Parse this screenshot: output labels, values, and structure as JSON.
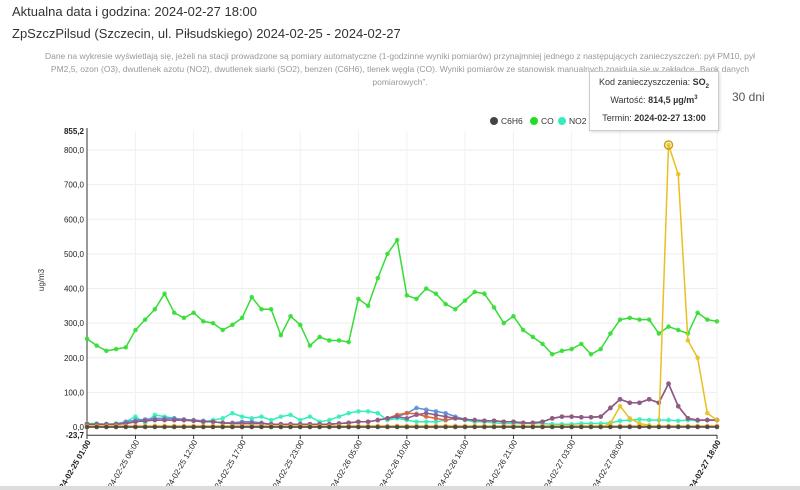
{
  "header": {
    "current_datetime": "Aktualna data i godzina: 2024-02-27 18:00",
    "station_title": "ZpSzczPilsud (Szczecin, ul. Piłsudskiego) 2024-02-25 - 2024-02-27"
  },
  "note": "Dane na wykresie wyświetlają się, jeżeli na stacji prowadzone są pomiary automatyczne (1-godzinne wyniki pomiarów) przynajmniej jednego z następujących zanieczyszczeń: pył PM10, pył PM2,5, ozon (O3), dwutlenek azotu (NO2), dwutlenek siarki (SO2), benzen (C6H6), tlenek węgla (CO). Wyniki pomiarów ze stanowisk manualnych znajdują się w zakładce „Bank danych pomiarowych”.",
  "range_button": "30 dni",
  "tooltip": {
    "code_label": "Kod zanieczyszczenia:",
    "code_value": "SO",
    "code_sub": "2",
    "value_label": "Wartość:",
    "value_value": "814,5 µg/m",
    "value_sup": "3",
    "term_label": "Termin:",
    "term_value": "2024-02-27 13:00"
  },
  "chart_data": {
    "type": "line",
    "ylabel": "ug/m3",
    "ylim": [
      -23.7,
      855.2
    ],
    "ytick_labels": [
      "855,2",
      "800,0",
      "700,0",
      "600,0",
      "500,0",
      "400,0",
      "300,0",
      "200,0",
      "100,0",
      "0,0",
      "-23,7"
    ],
    "yticks": [
      855.2,
      800,
      700,
      600,
      500,
      400,
      300,
      200,
      100,
      0,
      -23.7
    ],
    "x_start": "2024-02-25 01:00",
    "x_hours": 65,
    "xtick_labels": [
      "2024-02-25 01:00",
      "2024-02-25 06:00",
      "2024-02-25 12:00",
      "2024-02-25 17:00",
      "2024-02-25 23:00",
      "2024-02-26 05:00",
      "2024-02-26 10:00",
      "2024-02-26 16:00",
      "2024-02-26 21:00",
      "2024-02-27 03:00",
      "2024-02-27 08:00",
      "2024-02-27 18:00"
    ],
    "xtick_hours": [
      0,
      5,
      11,
      16,
      22,
      28,
      33,
      39,
      44,
      50,
      55,
      65
    ],
    "legend": {
      "placement": "top-right",
      "items": [
        {
          "name": "C6H6",
          "color": "#444444"
        },
        {
          "name": "CO",
          "color": "#22dd22"
        },
        {
          "name": "NO2",
          "color": "#33eebb"
        }
      ]
    },
    "series": [
      {
        "name": "CO",
        "color": "#33dd33",
        "values": [
          255,
          235,
          220,
          225,
          230,
          280,
          310,
          340,
          385,
          330,
          315,
          330,
          305,
          300,
          280,
          295,
          315,
          375,
          340,
          340,
          265,
          320,
          295,
          235,
          260,
          250,
          250,
          245,
          370,
          350,
          430,
          500,
          540,
          380,
          370,
          400,
          385,
          355,
          340,
          365,
          390,
          385,
          345,
          300,
          320,
          280,
          260,
          240,
          210,
          220,
          225,
          240,
          210,
          225,
          270,
          310,
          315,
          310,
          310,
          270,
          290,
          280,
          270,
          330,
          310,
          305
        ]
      },
      {
        "name": "NO2",
        "color": "#33eebb",
        "values": [
          10,
          10,
          8,
          10,
          15,
          30,
          12,
          35,
          30,
          25,
          20,
          18,
          15,
          20,
          25,
          40,
          30,
          25,
          30,
          20,
          30,
          35,
          20,
          30,
          15,
          20,
          30,
          40,
          45,
          45,
          40,
          20,
          25,
          20,
          15,
          15,
          15,
          20,
          25,
          20,
          15,
          15,
          12,
          10,
          10,
          10,
          10,
          10,
          8,
          8,
          8,
          10,
          10,
          10,
          12,
          18,
          20,
          22,
          20,
          20,
          20,
          18,
          20,
          18,
          20,
          20
        ]
      },
      {
        "name": null,
        "color": "#5b8fd8",
        "values": [
          8,
          8,
          8,
          8,
          15,
          20,
          22,
          25,
          25,
          25,
          22,
          20,
          18,
          15,
          12,
          12,
          15,
          15,
          12,
          8,
          8,
          8,
          8,
          8,
          8,
          8,
          10,
          12,
          15,
          15,
          20,
          25,
          30,
          40,
          55,
          50,
          45,
          40,
          30,
          22,
          20,
          18,
          18,
          15,
          15,
          12,
          12,
          15,
          25,
          30,
          30,
          28,
          28,
          30,
          55,
          80,
          70,
          70,
          80,
          70,
          125,
          60,
          25,
          20,
          20,
          20
        ]
      },
      {
        "name": null,
        "color": "#e0603a",
        "values": [
          8,
          8,
          8,
          8,
          10,
          15,
          18,
          20,
          20,
          20,
          20,
          18,
          15,
          15,
          12,
          10,
          10,
          10,
          10,
          8,
          8,
          8,
          8,
          8,
          8,
          8,
          10,
          12,
          15,
          15,
          20,
          25,
          35,
          40,
          38,
          30,
          25,
          20,
          25,
          22,
          20,
          18,
          18,
          15,
          15,
          12,
          12,
          15,
          25,
          30,
          30,
          28,
          28,
          30,
          55,
          80,
          70,
          70,
          80,
          70,
          125,
          60,
          25,
          20,
          20,
          20
        ]
      },
      {
        "name": null,
        "color": "#8a5a8a",
        "values": [
          8,
          8,
          8,
          8,
          10,
          15,
          18,
          20,
          20,
          20,
          20,
          18,
          15,
          15,
          12,
          10,
          10,
          10,
          10,
          8,
          8,
          8,
          8,
          8,
          8,
          8,
          10,
          12,
          15,
          15,
          20,
          25,
          30,
          25,
          35,
          40,
          35,
          30,
          25,
          22,
          20,
          18,
          18,
          15,
          15,
          12,
          12,
          15,
          25,
          30,
          30,
          28,
          28,
          30,
          55,
          80,
          70,
          70,
          80,
          70,
          125,
          60,
          25,
          20,
          20,
          20
        ]
      },
      {
        "name": null,
        "color": "#f0a030",
        "values": [
          3,
          3,
          3,
          3,
          3,
          3,
          3,
          3,
          3,
          3,
          3,
          3,
          3,
          3,
          3,
          3,
          3,
          3,
          3,
          3,
          3,
          3,
          3,
          3,
          3,
          3,
          3,
          3,
          3,
          3,
          3,
          3,
          3,
          3,
          3,
          3,
          3,
          3,
          3,
          3,
          3,
          3,
          3,
          3,
          3,
          3,
          3,
          3,
          3,
          3,
          3,
          3,
          3,
          3,
          3,
          3,
          3,
          3,
          3,
          3,
          3,
          3,
          3,
          3,
          3,
          3
        ]
      },
      {
        "name": "SO2",
        "color": "#e8c020",
        "values": [
          0,
          0,
          0,
          0,
          0,
          0,
          0,
          0,
          0,
          0,
          0,
          0,
          0,
          0,
          0,
          0,
          0,
          0,
          0,
          0,
          0,
          0,
          0,
          0,
          0,
          0,
          0,
          0,
          0,
          0,
          0,
          0,
          0,
          0,
          0,
          0,
          0,
          0,
          0,
          0,
          0,
          0,
          0,
          0,
          0,
          0,
          0,
          0,
          0,
          0,
          0,
          0,
          0,
          0,
          10,
          60,
          25,
          10,
          5,
          0,
          814.5,
          730,
          250,
          200,
          40,
          20
        ]
      },
      {
        "name": "C6H6",
        "color": "#444444",
        "values": [
          0,
          0,
          0,
          0,
          0,
          0,
          0,
          0,
          0,
          0,
          0,
          0,
          0,
          0,
          0,
          0,
          0,
          0,
          0,
          0,
          0,
          0,
          0,
          0,
          0,
          0,
          0,
          0,
          0,
          0,
          0,
          0,
          0,
          0,
          0,
          0,
          0,
          0,
          0,
          0,
          0,
          0,
          0,
          0,
          0,
          0,
          0,
          0,
          0,
          0,
          0,
          0,
          0,
          0,
          0,
          0,
          0,
          0,
          0,
          0,
          0,
          0,
          0,
          0,
          0,
          0
        ]
      }
    ]
  }
}
